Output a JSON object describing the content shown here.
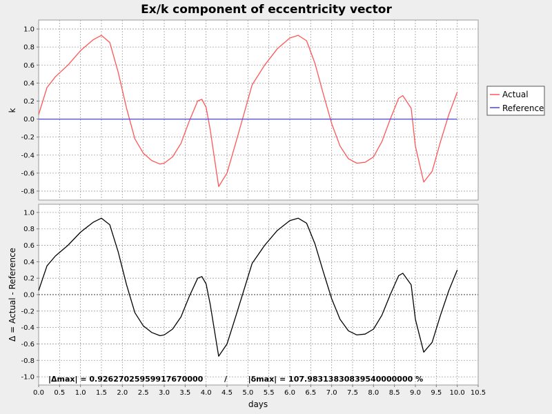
{
  "chart_data": {
    "type": "line",
    "title": "Ex/k component of eccentricity vector",
    "xlabel": "days",
    "xlim": [
      0,
      10.5
    ],
    "xticks": [
      "0.0",
      "0.5",
      "1.0",
      "1.5",
      "2.0",
      "2.5",
      "3.0",
      "3.5",
      "4.0",
      "4.5",
      "5.0",
      "5.5",
      "6.0",
      "6.5",
      "7.0",
      "7.5",
      "8.0",
      "8.5",
      "9.0",
      "9.5",
      "10.0",
      "10.5"
    ],
    "grid": true,
    "legend_position": "right",
    "panels": [
      {
        "ylabel": "k",
        "ylim": [
          -0.9,
          1.1
        ],
        "yticks": [
          "1.0",
          "0.8",
          "0.6",
          "0.4",
          "0.2",
          "0.0",
          "-0.2",
          "-0.4",
          "-0.6",
          "-0.8"
        ],
        "series": [
          {
            "name": "Actual",
            "color": "#ff5555",
            "x": [
              0,
              0.2,
              0.4,
              0.7,
              1.0,
              1.3,
              1.5,
              1.7,
              1.9,
              2.1,
              2.3,
              2.5,
              2.7,
              2.9,
              3.0,
              3.2,
              3.4,
              3.6,
              3.8,
              3.9,
              4.0,
              4.1,
              4.3,
              4.5,
              4.7,
              4.9,
              5.1,
              5.4,
              5.7,
              6.0,
              6.2,
              6.4,
              6.6,
              6.8,
              7.0,
              7.2,
              7.4,
              7.6,
              7.8,
              8.0,
              8.2,
              8.4,
              8.6,
              8.7,
              8.9,
              9.0,
              9.2,
              9.4,
              9.6,
              9.8,
              10.0
            ],
            "y": [
              0.05,
              0.35,
              0.47,
              0.6,
              0.76,
              0.88,
              0.93,
              0.85,
              0.52,
              0.12,
              -0.22,
              -0.38,
              -0.46,
              -0.5,
              -0.49,
              -0.42,
              -0.27,
              -0.02,
              0.2,
              0.22,
              0.13,
              -0.12,
              -0.75,
              -0.6,
              -0.28,
              0.05,
              0.38,
              0.6,
              0.78,
              0.9,
              0.93,
              0.87,
              0.62,
              0.28,
              -0.05,
              -0.3,
              -0.44,
              -0.49,
              -0.48,
              -0.42,
              -0.25,
              0.0,
              0.23,
              0.26,
              0.12,
              -0.3,
              -0.7,
              -0.58,
              -0.25,
              0.05,
              0.3
            ]
          },
          {
            "name": "Reference",
            "color": "#4444ee",
            "x": [
              0,
              10.0
            ],
            "y": [
              0,
              0
            ]
          }
        ]
      },
      {
        "ylabel": "Δ = Actual - Reference",
        "ylim": [
          -1.1,
          1.1
        ],
        "yticks": [
          "1.0",
          "0.8",
          "0.6",
          "0.4",
          "0.2",
          "0.0",
          "-0.2",
          "-0.4",
          "-0.6",
          "-0.8",
          "-1.0"
        ],
        "series": [
          {
            "color": "#000000",
            "x": [
              0,
              0.2,
              0.4,
              0.7,
              1.0,
              1.3,
              1.5,
              1.7,
              1.9,
              2.1,
              2.3,
              2.5,
              2.7,
              2.9,
              3.0,
              3.2,
              3.4,
              3.6,
              3.8,
              3.9,
              4.0,
              4.1,
              4.3,
              4.5,
              4.7,
              4.9,
              5.1,
              5.4,
              5.7,
              6.0,
              6.2,
              6.4,
              6.6,
              6.8,
              7.0,
              7.2,
              7.4,
              7.6,
              7.8,
              8.0,
              8.2,
              8.4,
              8.6,
              8.7,
              8.9,
              9.0,
              9.2,
              9.4,
              9.6,
              9.8,
              10.0
            ],
            "y": [
              0.05,
              0.35,
              0.47,
              0.6,
              0.76,
              0.88,
              0.93,
              0.85,
              0.52,
              0.12,
              -0.22,
              -0.38,
              -0.46,
              -0.5,
              -0.49,
              -0.42,
              -0.27,
              -0.02,
              0.2,
              0.22,
              0.13,
              -0.12,
              -0.75,
              -0.6,
              -0.28,
              0.05,
              0.38,
              0.6,
              0.78,
              0.9,
              0.93,
              0.87,
              0.62,
              0.28,
              -0.05,
              -0.3,
              -0.44,
              -0.49,
              -0.48,
              -0.42,
              -0.25,
              0.0,
              0.23,
              0.26,
              0.12,
              -0.3,
              -0.7,
              -0.58,
              -0.25,
              0.05,
              0.3
            ]
          }
        ],
        "annotation": "|Δmax| = 0.92627025959917670000        /        |δmax| = 107.98313830839540000000 %"
      }
    ]
  }
}
